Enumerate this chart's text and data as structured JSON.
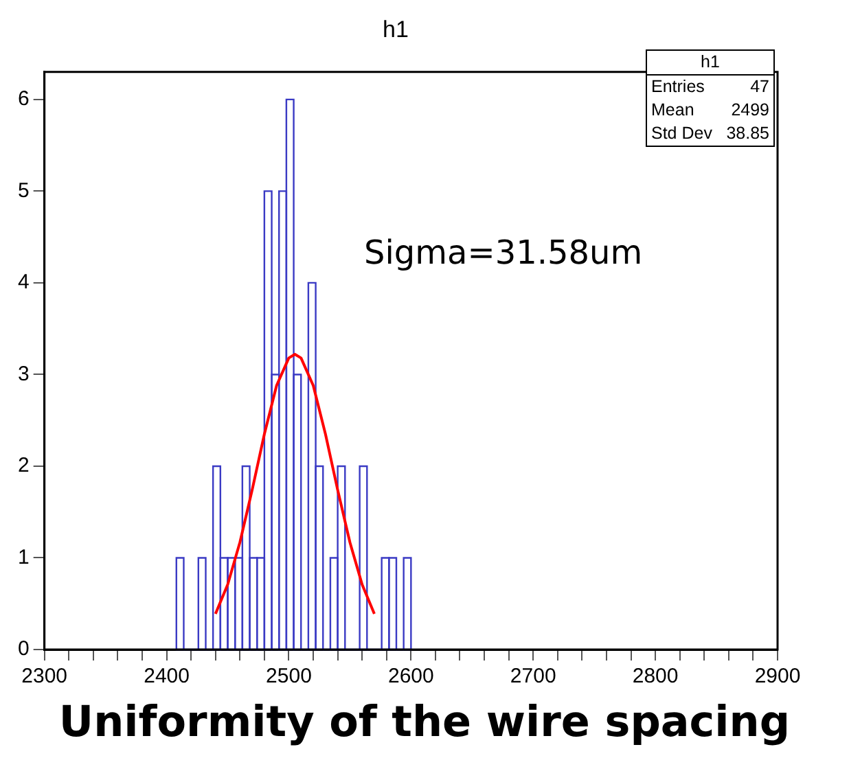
{
  "chart_data": {
    "type": "histogram",
    "title": "h1",
    "bins": [
      2408,
      2414,
      2420,
      2426,
      2432,
      2438,
      2444,
      2450,
      2456,
      2462,
      2468,
      2474,
      2480,
      2486,
      2492,
      2498,
      2504,
      2510,
      2516,
      2522,
      2528,
      2534,
      2540,
      2546,
      2552,
      2558,
      2564,
      2570,
      2576,
      2582,
      2588,
      2594,
      2600
    ],
    "values": [
      1,
      0,
      0,
      1,
      0,
      2,
      1,
      1,
      1,
      2,
      1,
      1,
      5,
      3,
      5,
      6,
      3,
      0,
      4,
      2,
      0,
      1,
      2,
      0,
      0,
      2,
      0,
      0,
      1,
      1,
      0,
      1
    ],
    "color": "#3a3ac4",
    "series": [
      {
        "type": "line",
        "x": [
          2440,
          2450,
          2460,
          2470,
          2480,
          2490,
          2500,
          2505,
          2510,
          2520,
          2530,
          2540,
          2550,
          2560,
          2570
        ],
        "values": [
          0.39,
          0.71,
          1.17,
          1.74,
          2.35,
          2.88,
          3.18,
          3.22,
          3.18,
          2.88,
          2.35,
          1.74,
          1.17,
          0.71,
          0.39
        ],
        "color": "#ff0000",
        "marker": "none"
      }
    ],
    "xlim": [
      2300,
      2900
    ],
    "xticks": [
      2300,
      {
        "value": 2320,
        "label": null
      },
      {
        "value": 2340,
        "label": null
      },
      {
        "value": 2360,
        "label": null
      },
      {
        "value": 2380,
        "label": null
      },
      2400,
      {
        "value": 2420,
        "label": null
      },
      {
        "value": 2440,
        "label": null
      },
      {
        "value": 2460,
        "label": null
      },
      {
        "value": 2480,
        "label": null
      },
      2500,
      {
        "value": 2520,
        "label": null
      },
      {
        "value": 2540,
        "label": null
      },
      {
        "value": 2560,
        "label": null
      },
      {
        "value": 2580,
        "label": null
      },
      2600,
      {
        "value": 2620,
        "label": null
      },
      {
        "value": 2640,
        "label": null
      },
      {
        "value": 2660,
        "label": null
      },
      {
        "value": 2680,
        "label": null
      },
      2700,
      {
        "value": 2720,
        "label": null
      },
      {
        "value": 2740,
        "label": null
      },
      {
        "value": 2760,
        "label": null
      },
      {
        "value": 2780,
        "label": null
      },
      2800,
      {
        "value": 2820,
        "label": null
      },
      {
        "value": 2840,
        "label": null
      },
      {
        "value": 2860,
        "label": null
      },
      {
        "value": 2880,
        "label": null
      },
      2900
    ],
    "ylim": [
      0,
      6.3
    ],
    "yticks": [
      0,
      1,
      2,
      3,
      4,
      5,
      6
    ],
    "grid": false,
    "legend": false,
    "annotations": [
      "h1",
      "Entries",
      "47",
      "Mean",
      "2499",
      "Std Dev",
      "38.85",
      "Sigma=31.58um",
      "Uniformity of the wire spacing"
    ]
  }
}
